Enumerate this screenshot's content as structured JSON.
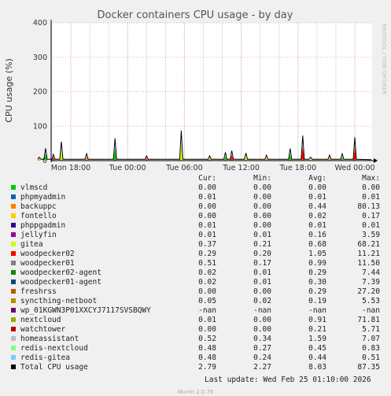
{
  "chart_data": {
    "type": "area",
    "title": "Docker containers CPU usage - by day",
    "ylabel": "CPU usage (%)",
    "xlabel": "",
    "ylim": [
      0,
      400
    ],
    "y_ticks": [
      "0",
      "100",
      "200",
      "300",
      "400"
    ],
    "x_ticks": [
      "Mon 18:00",
      "Tue 00:00",
      "Tue 06:00",
      "Tue 12:00",
      "Tue 18:00",
      "Wed 00:00"
    ],
    "grid": true,
    "total_series_peaks": [
      {
        "x": "Mon 14:40",
        "y": 10
      },
      {
        "x": "Mon 15:20",
        "y": 36
      },
      {
        "x": "Mon 16:10",
        "y": 18
      },
      {
        "x": "Mon 17:00",
        "y": 55
      },
      {
        "x": "Mon 19:40",
        "y": 20
      },
      {
        "x": "Mon 22:40",
        "y": 65
      },
      {
        "x": "Tue 02:00",
        "y": 14
      },
      {
        "x": "Tue 05:40",
        "y": 87
      },
      {
        "x": "Tue 08:40",
        "y": 14
      },
      {
        "x": "Tue 10:20",
        "y": 24
      },
      {
        "x": "Tue 11:00",
        "y": 29
      },
      {
        "x": "Tue 12:30",
        "y": 22
      },
      {
        "x": "Tue 14:40",
        "y": 16
      },
      {
        "x": "Tue 17:10",
        "y": 35
      },
      {
        "x": "Tue 18:30",
        "y": 73
      },
      {
        "x": "Tue 19:20",
        "y": 10
      },
      {
        "x": "Tue 21:20",
        "y": 16
      },
      {
        "x": "Tue 22:40",
        "y": 20
      },
      {
        "x": "Wed 00:00",
        "y": 68
      }
    ],
    "total_series_baseline": 3
  },
  "side_label": "RRDTOOL / TOBI OETIKER",
  "legend": {
    "headers": {
      "cur": "Cur:",
      "min": "Min:",
      "avg": "Avg:",
      "max": "Max:"
    },
    "rows": [
      {
        "name": "vlmscd",
        "color": "#00cc00",
        "cur": "0.00",
        "min": "0.00",
        "avg": "0.00",
        "max": "0.00"
      },
      {
        "name": "phpmyadmin",
        "color": "#0066b3",
        "cur": "0.01",
        "min": "0.00",
        "avg": "0.01",
        "max": "0.01"
      },
      {
        "name": "backuppc",
        "color": "#ff8000",
        "cur": "0.00",
        "min": "0.00",
        "avg": "0.44",
        "max": "80.13"
      },
      {
        "name": "fontello",
        "color": "#ffcc00",
        "cur": "0.00",
        "min": "0.00",
        "avg": "0.02",
        "max": "0.17"
      },
      {
        "name": "phppgadmin",
        "color": "#330099",
        "cur": "0.01",
        "min": "0.00",
        "avg": "0.01",
        "max": "0.01"
      },
      {
        "name": "jellyfin",
        "color": "#990099",
        "cur": "0.01",
        "min": "0.01",
        "avg": "0.16",
        "max": "3.59"
      },
      {
        "name": "gitea",
        "color": "#ccff00",
        "cur": "0.37",
        "min": "0.21",
        "avg": "0.68",
        "max": "68.21"
      },
      {
        "name": "woodpecker02",
        "color": "#ff0000",
        "cur": "0.29",
        "min": "0.20",
        "avg": "1.05",
        "max": "11.21"
      },
      {
        "name": "woodpecker01",
        "color": "#808080",
        "cur": "0.51",
        "min": "0.17",
        "avg": "0.99",
        "max": "11.50"
      },
      {
        "name": "woodpecker02-agent",
        "color": "#008f00",
        "cur": "0.02",
        "min": "0.01",
        "avg": "0.29",
        "max": "7.44"
      },
      {
        "name": "woodpecker01-agent",
        "color": "#00487d",
        "cur": "0.02",
        "min": "0.01",
        "avg": "0.30",
        "max": "7.39"
      },
      {
        "name": "freshrss",
        "color": "#b35a00",
        "cur": "0.00",
        "min": "0.00",
        "avg": "0.29",
        "max": "27.20"
      },
      {
        "name": "syncthing-netboot",
        "color": "#b38f00",
        "cur": "0.05",
        "min": "0.02",
        "avg": "0.19",
        "max": "5.53"
      },
      {
        "name": "wp_01KGWN3P01XXCYJ7117SVSBQWY",
        "color": "#6b006b",
        "cur": "-nan",
        "min": "-nan",
        "avg": "-nan",
        "max": "-nan"
      },
      {
        "name": "nextcloud",
        "color": "#8fb300",
        "cur": "0.01",
        "min": "0.00",
        "avg": "0.91",
        "max": "71.81"
      },
      {
        "name": "watchtower",
        "color": "#b30000",
        "cur": "0.00",
        "min": "0.00",
        "avg": "0.21",
        "max": "5.71"
      },
      {
        "name": "homeassistant",
        "color": "#bebebe",
        "cur": "0.52",
        "min": "0.34",
        "avg": "1.59",
        "max": "7.07"
      },
      {
        "name": "redis-nextcloud",
        "color": "#80ff80",
        "cur": "0.48",
        "min": "0.27",
        "avg": "0.45",
        "max": "0.83"
      },
      {
        "name": "redis-gitea",
        "color": "#80c9ff",
        "cur": "0.48",
        "min": "0.24",
        "avg": "0.44",
        "max": "0.51"
      },
      {
        "name": "Total CPU usage",
        "color": "#000000",
        "cur": "2.79",
        "min": "2.27",
        "avg": "8.03",
        "max": "87.35"
      }
    ]
  },
  "footer": {
    "last_update": "Last update: Wed Feb 25 01:10:00 2026",
    "munin_version": "Munin 2.0.76"
  }
}
